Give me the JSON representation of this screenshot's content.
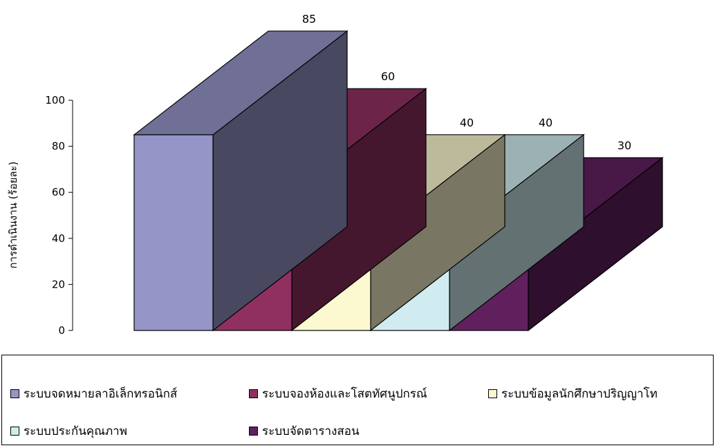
{
  "chart_data": {
    "type": "bar",
    "style": "3d-stepped",
    "categories": [
      "ระบบจดหมายลาอิเล็กทรอนิกส์",
      "ระบบจองห้องและโสตทัศนูปกรณ์",
      "ระบบข้อมูลนักศึกษาปริญญาโท",
      "ระบบประกันคุณภาพ",
      "ระบบจัดตารางสอน"
    ],
    "values": [
      85,
      60,
      40,
      40,
      30
    ],
    "data_labels": [
      "85",
      "60",
      "40",
      "40",
      "30"
    ],
    "colors": [
      "#9595C8",
      "#903060",
      "#FCF8D0",
      "#D0ECF0",
      "#60205E"
    ],
    "ylabel": "การดำเนินงาน (ร้อยละ)",
    "ylim": [
      0,
      100
    ],
    "yticks": [
      "0",
      "20",
      "40",
      "60",
      "80",
      "100"
    ],
    "grid": false,
    "legend_position": "bottom"
  }
}
